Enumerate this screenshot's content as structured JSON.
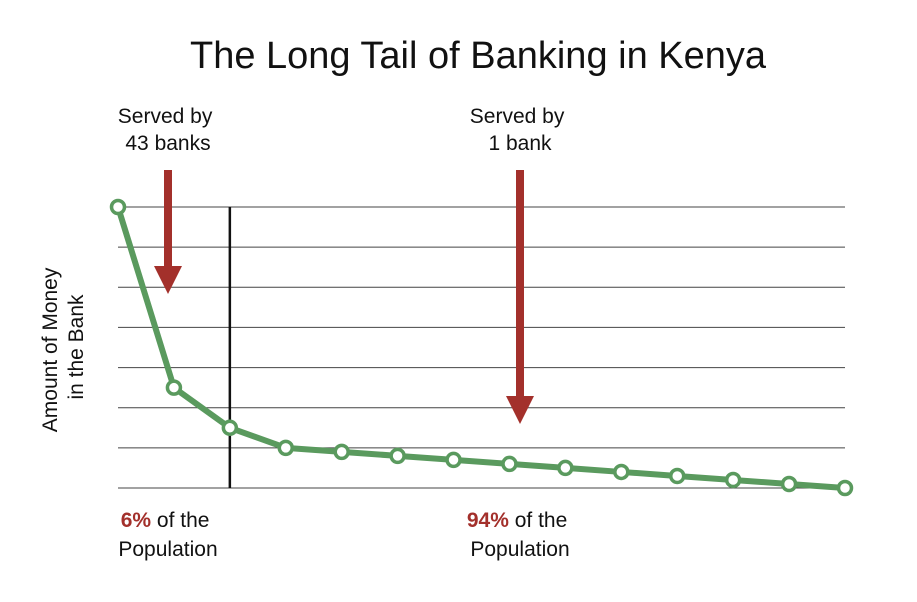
{
  "chart_data": {
    "type": "line",
    "title": "The Long Tail of Banking in Kenya",
    "ylabel": [
      "Amount of Money",
      "in the Bank"
    ],
    "xlabel": "",
    "grid": true,
    "ylim": [
      0,
      7
    ],
    "x": [
      1,
      2,
      3,
      4,
      5,
      6,
      7,
      8,
      9,
      10,
      11,
      12,
      13,
      14
    ],
    "series": [
      {
        "name": "",
        "values": [
          7.0,
          2.5,
          1.5,
          1.0,
          0.9,
          0.8,
          0.7,
          0.6,
          0.5,
          0.4,
          0.3,
          0.2,
          0.1,
          0.0
        ]
      }
    ],
    "divider_after_x": 3,
    "annotations": {
      "left": {
        "line1": "Served by",
        "line2": "43 banks",
        "pct": "6%",
        "pct_rest": " of the",
        "line4": "Population"
      },
      "right": {
        "line1": "Served by",
        "line2": "1 bank",
        "pct": "94%",
        "pct_rest": " of the",
        "line4": "Population"
      }
    },
    "colors": {
      "line": "#5a9a5e",
      "marker_fill": "#ffffff",
      "arrow": "#a3302b",
      "pct_text": "#a3302b",
      "grid": "#444444",
      "divider": "#111111"
    }
  }
}
